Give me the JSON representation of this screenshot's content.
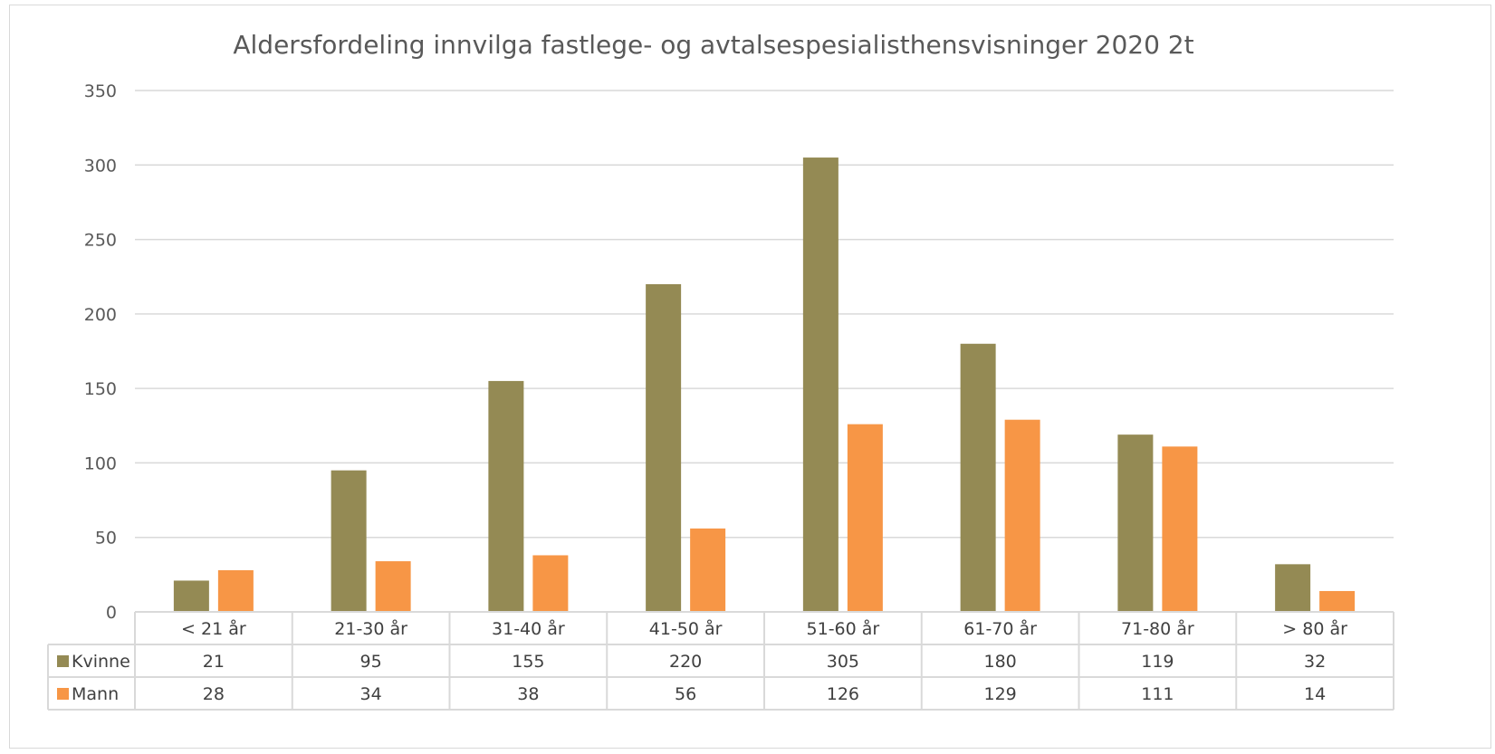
{
  "chart_data": {
    "type": "bar",
    "title": "Aldersfordeling innvilga fastlege- og avtalsespesialisthensvisninger 2020 2t",
    "categories": [
      "<  21 år",
      "21-30 år",
      "31-40 år",
      "41-50 år",
      "51-60 år",
      "61-70 år",
      "71-80 år",
      "> 80 år"
    ],
    "series": [
      {
        "name": "Kvinne",
        "color": "#948A54",
        "values": [
          21,
          95,
          155,
          220,
          305,
          180,
          119,
          32
        ]
      },
      {
        "name": "Mann",
        "color": "#F79646",
        "values": [
          28,
          34,
          38,
          56,
          126,
          129,
          111,
          14
        ]
      }
    ],
    "ylim": [
      0,
      350
    ],
    "yticks": [
      0,
      50,
      100,
      150,
      200,
      250,
      300,
      350
    ],
    "grid": true,
    "data_table": true,
    "xlabel": "",
    "ylabel": ""
  }
}
